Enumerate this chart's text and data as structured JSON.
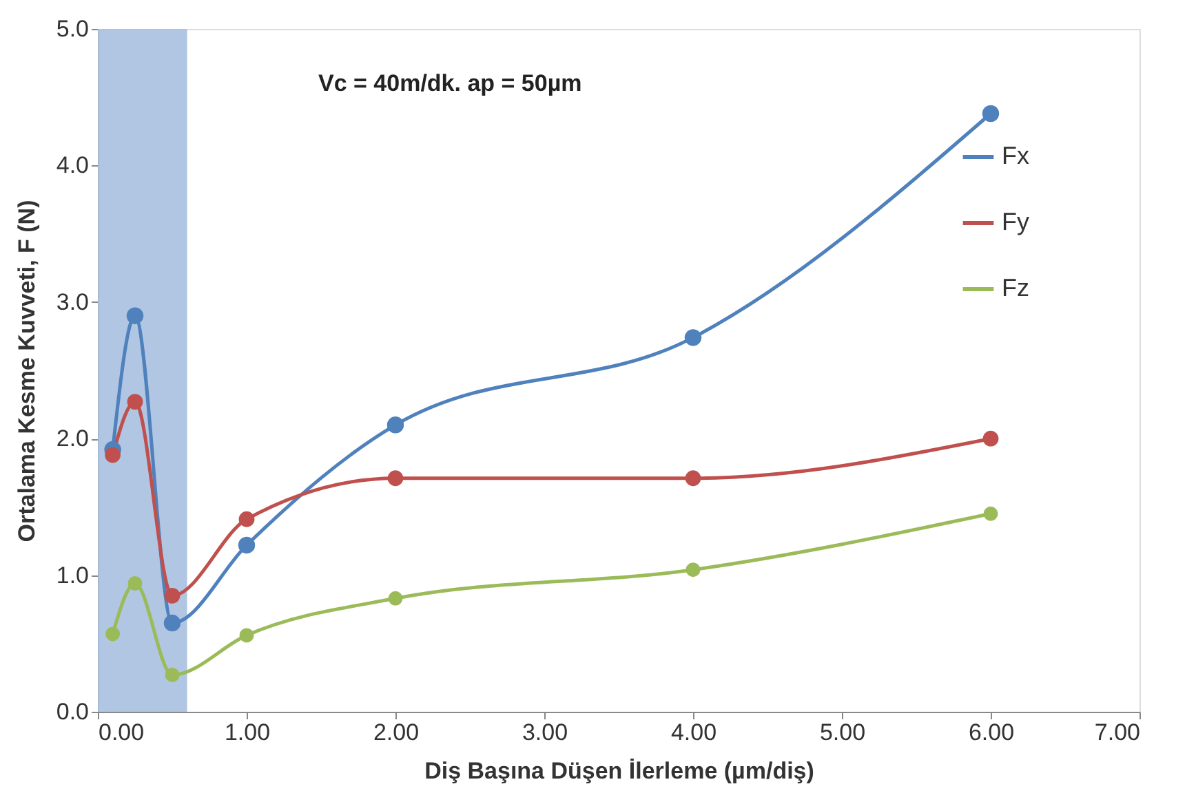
{
  "chart_data": {
    "type": "line",
    "xlabel": "Diş Başına Düşen İlerleme (µm/diş)",
    "ylabel": "Ortalama Kesme Kuvveti, F (N)",
    "x": [
      0.1,
      0.25,
      0.5,
      1,
      2,
      4,
      6
    ],
    "series": [
      {
        "name": "Fx",
        "color": "#4f81bd",
        "values": [
          1.92,
          2.9,
          0.65,
          1.22,
          2.1,
          2.74,
          4.38
        ]
      },
      {
        "name": "Fy",
        "color": "#c0504d",
        "values": [
          1.88,
          2.27,
          0.85,
          1.41,
          1.71,
          1.71,
          2.0
        ]
      },
      {
        "name": "Fz",
        "color": "#9bbb59",
        "values": [
          0.57,
          0.94,
          0.27,
          0.56,
          0.83,
          1.04,
          1.45
        ]
      }
    ],
    "xlim": [
      0,
      7
    ],
    "xticks": [
      {
        "value": 0,
        "label": "0.00"
      },
      {
        "value": 1,
        "label": "1.00"
      },
      {
        "value": 2,
        "label": "2.00"
      },
      {
        "value": 3,
        "label": "3.00"
      },
      {
        "value": 4,
        "label": "4.00"
      },
      {
        "value": 5,
        "label": "5.00"
      },
      {
        "value": 6,
        "label": "6.00"
      },
      {
        "value": 7,
        "label": "7.00"
      }
    ],
    "ylim": [
      0,
      5
    ],
    "yticks": [
      {
        "value": 0,
        "label": "0.0"
      },
      {
        "value": 1,
        "label": "1.0"
      },
      {
        "value": 2,
        "label": "2.0"
      },
      {
        "value": 3,
        "label": "3.0"
      },
      {
        "value": 4,
        "label": "4.0"
      },
      {
        "value": 5,
        "label": "5.0"
      }
    ],
    "bands": [
      {
        "axis": "x",
        "from": 0,
        "to": 0.6,
        "color": "#a7c0e0"
      }
    ],
    "annotations": [
      "Vc = 40m/dk.   ap = 50µm"
    ],
    "legend": "right",
    "grid": false,
    "marker": "circle",
    "line_style": "solid"
  }
}
